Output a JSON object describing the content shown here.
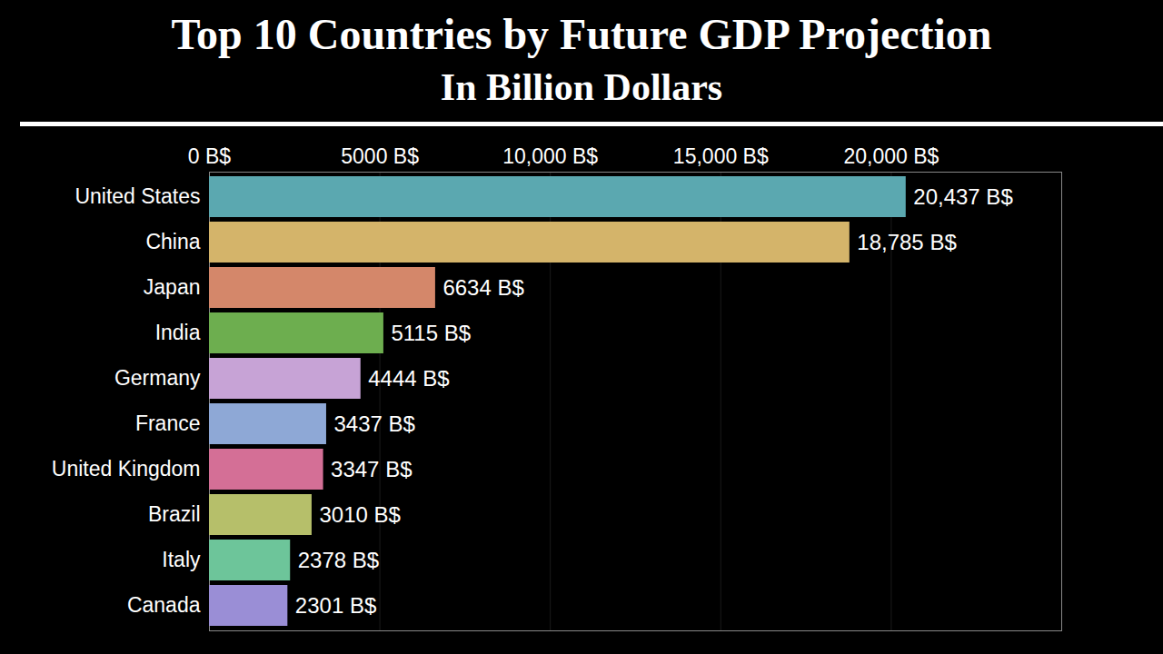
{
  "chart_data": {
    "type": "bar",
    "orientation": "horizontal",
    "title": "Top 10 Countries by Future GDP Projection",
    "subtitle": "In Billion Dollars",
    "categories": [
      "United States",
      "China",
      "Japan",
      "India",
      "Germany",
      "France",
      "United Kingdom",
      "Brazil",
      "Italy",
      "Canada"
    ],
    "values": [
      20437,
      18785,
      6634,
      5115,
      4444,
      3437,
      3347,
      3010,
      2378,
      2301
    ],
    "value_labels": [
      "20,437 B$",
      "18,785 B$",
      "6634 B$",
      "5115 B$",
      "4444 B$",
      "3437 B$",
      "3347 B$",
      "3010 B$",
      "2378 B$",
      "2301 B$"
    ],
    "colors": [
      "#5ba8b0",
      "#d4b46a",
      "#d4876a",
      "#6dae4f",
      "#c7a3d6",
      "#8ea8d6",
      "#d46f96",
      "#b6bf6a",
      "#6dc59a",
      "#9a8ed6"
    ],
    "xlim": [
      0,
      25000
    ],
    "xticks": [
      {
        "value": 0,
        "label": "0 B$"
      },
      {
        "value": 5000,
        "label": "5000 B$"
      },
      {
        "value": 10000,
        "label": "10,000 B$"
      },
      {
        "value": 15000,
        "label": "15,000 B$"
      },
      {
        "value": 20000,
        "label": "20,000 B$"
      }
    ],
    "grid": true,
    "data_labels": true
  }
}
